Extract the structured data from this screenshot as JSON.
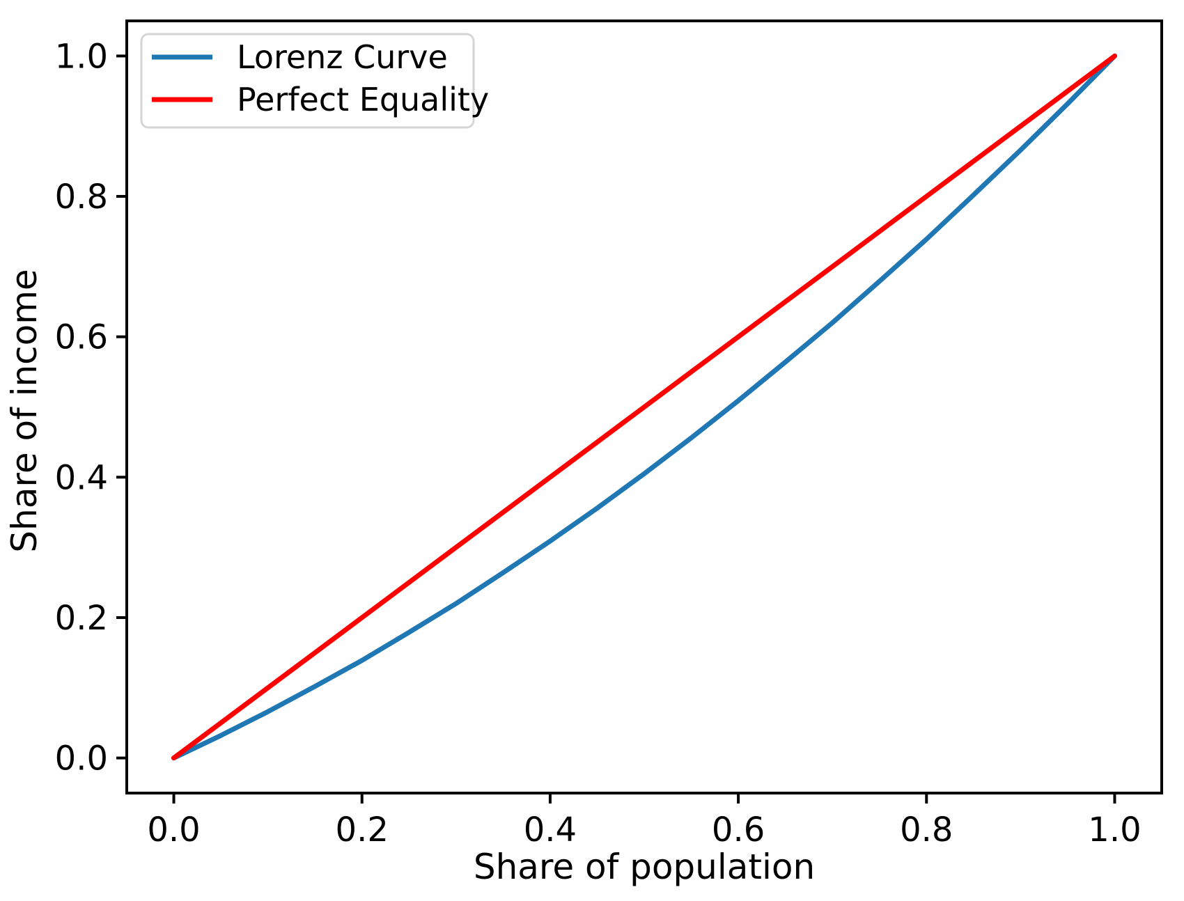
{
  "figure": {
    "background": "#ffffff"
  },
  "chart_data": {
    "type": "line",
    "title": "",
    "xlabel": "Share of population",
    "ylabel": "Share of income",
    "xlim": [
      -0.05,
      1.05
    ],
    "ylim": [
      -0.05,
      1.05
    ],
    "xticks": [
      0.0,
      0.2,
      0.4,
      0.6,
      0.8,
      1.0
    ],
    "yticks": [
      0.0,
      0.2,
      0.4,
      0.6,
      0.8,
      1.0
    ],
    "xtick_labels": [
      "0.0",
      "0.2",
      "0.4",
      "0.6",
      "0.8",
      "1.0"
    ],
    "ytick_labels": [
      "0.0",
      "0.2",
      "0.4",
      "0.6",
      "0.8",
      "1.0"
    ],
    "grid": false,
    "legend_position": "upper left",
    "x": [
      0.0,
      0.05,
      0.1,
      0.15,
      0.2,
      0.25,
      0.3,
      0.35,
      0.4,
      0.45,
      0.5,
      0.55,
      0.6,
      0.65,
      0.7,
      0.75,
      0.8,
      0.85,
      0.9,
      0.95,
      1.0
    ],
    "series": [
      {
        "name": "Lorenz Curve",
        "color": "#1f77b4",
        "values": [
          0.0,
          0.032,
          0.066,
          0.102,
          0.139,
          0.179,
          0.22,
          0.264,
          0.309,
          0.356,
          0.405,
          0.456,
          0.509,
          0.564,
          0.62,
          0.679,
          0.739,
          0.802,
          0.866,
          0.932,
          1.0
        ]
      },
      {
        "name": "Perfect Equality",
        "color": "#ff0000",
        "values": [
          0.0,
          0.05,
          0.1,
          0.15,
          0.2,
          0.25,
          0.3,
          0.35,
          0.4,
          0.45,
          0.5,
          0.55,
          0.6,
          0.65,
          0.7,
          0.75,
          0.8,
          0.85,
          0.9,
          0.95,
          1.0
        ]
      }
    ],
    "axis_color": "#000000",
    "legend_border_color": "#d5d5d5",
    "legend_background": "#ffffff"
  }
}
